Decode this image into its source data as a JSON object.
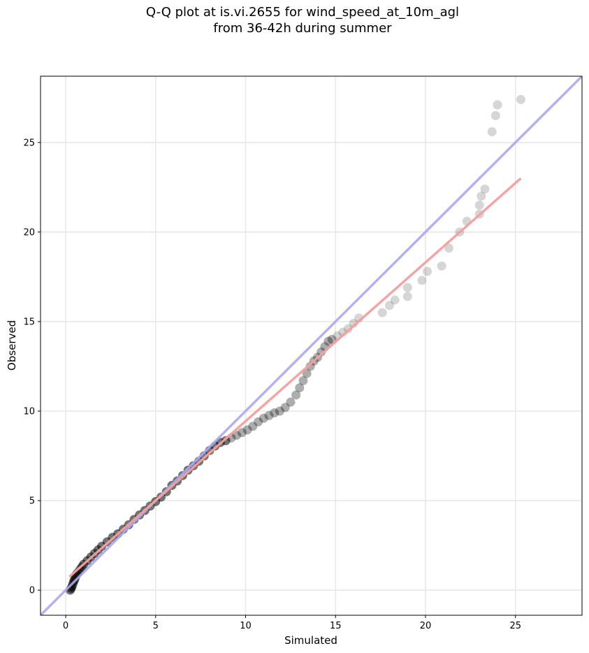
{
  "title_line1": "Q-Q plot at is.vi.2655 for wind_speed_at_10m_agl",
  "title_line2": "from 36-42h during summer",
  "chart_data": {
    "type": "scatter",
    "xlabel": "Simulated",
    "ylabel": "Observed",
    "xlim": [
      -1.4,
      28.7
    ],
    "ylim": [
      -1.4,
      28.7
    ],
    "xticks": [
      0,
      5,
      10,
      15,
      20,
      25
    ],
    "yticks": [
      0,
      5,
      10,
      15,
      20,
      25
    ],
    "grid": true,
    "reference_line": {
      "slope": 1,
      "intercept": 0,
      "color": "#aaaaee"
    },
    "fit_line": {
      "x": [
        0.2,
        25.3
      ],
      "y": [
        0.75,
        23.0
      ],
      "color": "#f2a0a0"
    },
    "point_color": "#000000",
    "points": [
      [
        0.25,
        0.0
      ],
      [
        0.3,
        0.1
      ],
      [
        0.35,
        0.2
      ],
      [
        0.4,
        0.35
      ],
      [
        0.45,
        0.5
      ],
      [
        0.5,
        0.6
      ],
      [
        0.55,
        0.75
      ],
      [
        0.6,
        0.9
      ],
      [
        0.7,
        1.0
      ],
      [
        0.8,
        1.15
      ],
      [
        0.9,
        1.3
      ],
      [
        1.0,
        1.45
      ],
      [
        1.2,
        1.65
      ],
      [
        1.4,
        1.85
      ],
      [
        1.6,
        2.05
      ],
      [
        1.8,
        2.25
      ],
      [
        2.0,
        2.45
      ],
      [
        2.3,
        2.7
      ],
      [
        2.6,
        2.95
      ],
      [
        2.9,
        3.15
      ],
      [
        3.2,
        3.4
      ],
      [
        3.5,
        3.65
      ],
      [
        3.8,
        3.95
      ],
      [
        4.1,
        4.2
      ],
      [
        4.4,
        4.45
      ],
      [
        4.7,
        4.7
      ],
      [
        5.0,
        4.95
      ],
      [
        5.3,
        5.2
      ],
      [
        5.6,
        5.5
      ],
      [
        5.9,
        5.85
      ],
      [
        6.2,
        6.1
      ],
      [
        6.5,
        6.4
      ],
      [
        6.8,
        6.7
      ],
      [
        7.1,
        6.95
      ],
      [
        7.4,
        7.2
      ],
      [
        7.7,
        7.5
      ],
      [
        8.0,
        7.8
      ],
      [
        8.3,
        8.05
      ],
      [
        8.6,
        8.25
      ],
      [
        8.9,
        8.35
      ],
      [
        9.2,
        8.5
      ],
      [
        9.5,
        8.65
      ],
      [
        9.8,
        8.8
      ],
      [
        10.1,
        8.95
      ],
      [
        10.4,
        9.15
      ],
      [
        10.7,
        9.4
      ],
      [
        11.0,
        9.6
      ],
      [
        11.3,
        9.75
      ],
      [
        11.6,
        9.9
      ],
      [
        11.9,
        10.0
      ],
      [
        12.2,
        10.2
      ],
      [
        12.5,
        10.5
      ],
      [
        12.8,
        10.9
      ],
      [
        13.0,
        11.3
      ],
      [
        13.2,
        11.7
      ],
      [
        13.4,
        12.1
      ],
      [
        13.6,
        12.5
      ],
      [
        13.8,
        12.8
      ],
      [
        14.0,
        13.0
      ],
      [
        14.2,
        13.3
      ],
      [
        14.4,
        13.6
      ],
      [
        14.6,
        13.9
      ],
      [
        14.8,
        14.0
      ],
      [
        15.1,
        14.2
      ],
      [
        15.4,
        14.4
      ],
      [
        15.7,
        14.6
      ],
      [
        16.0,
        14.9
      ],
      [
        16.3,
        15.2
      ],
      [
        17.6,
        15.5
      ],
      [
        18.0,
        15.9
      ],
      [
        18.3,
        16.2
      ],
      [
        19.0,
        16.4
      ],
      [
        19.0,
        16.9
      ],
      [
        19.8,
        17.3
      ],
      [
        20.1,
        17.8
      ],
      [
        20.9,
        18.1
      ],
      [
        21.3,
        19.1
      ],
      [
        21.9,
        20.0
      ],
      [
        22.3,
        20.6
      ],
      [
        23.0,
        21.0
      ],
      [
        23.0,
        21.5
      ],
      [
        23.1,
        22.0
      ],
      [
        23.3,
        22.4
      ],
      [
        23.7,
        25.6
      ],
      [
        23.9,
        26.5
      ],
      [
        24.0,
        27.1
      ],
      [
        25.3,
        27.4
      ]
    ]
  }
}
